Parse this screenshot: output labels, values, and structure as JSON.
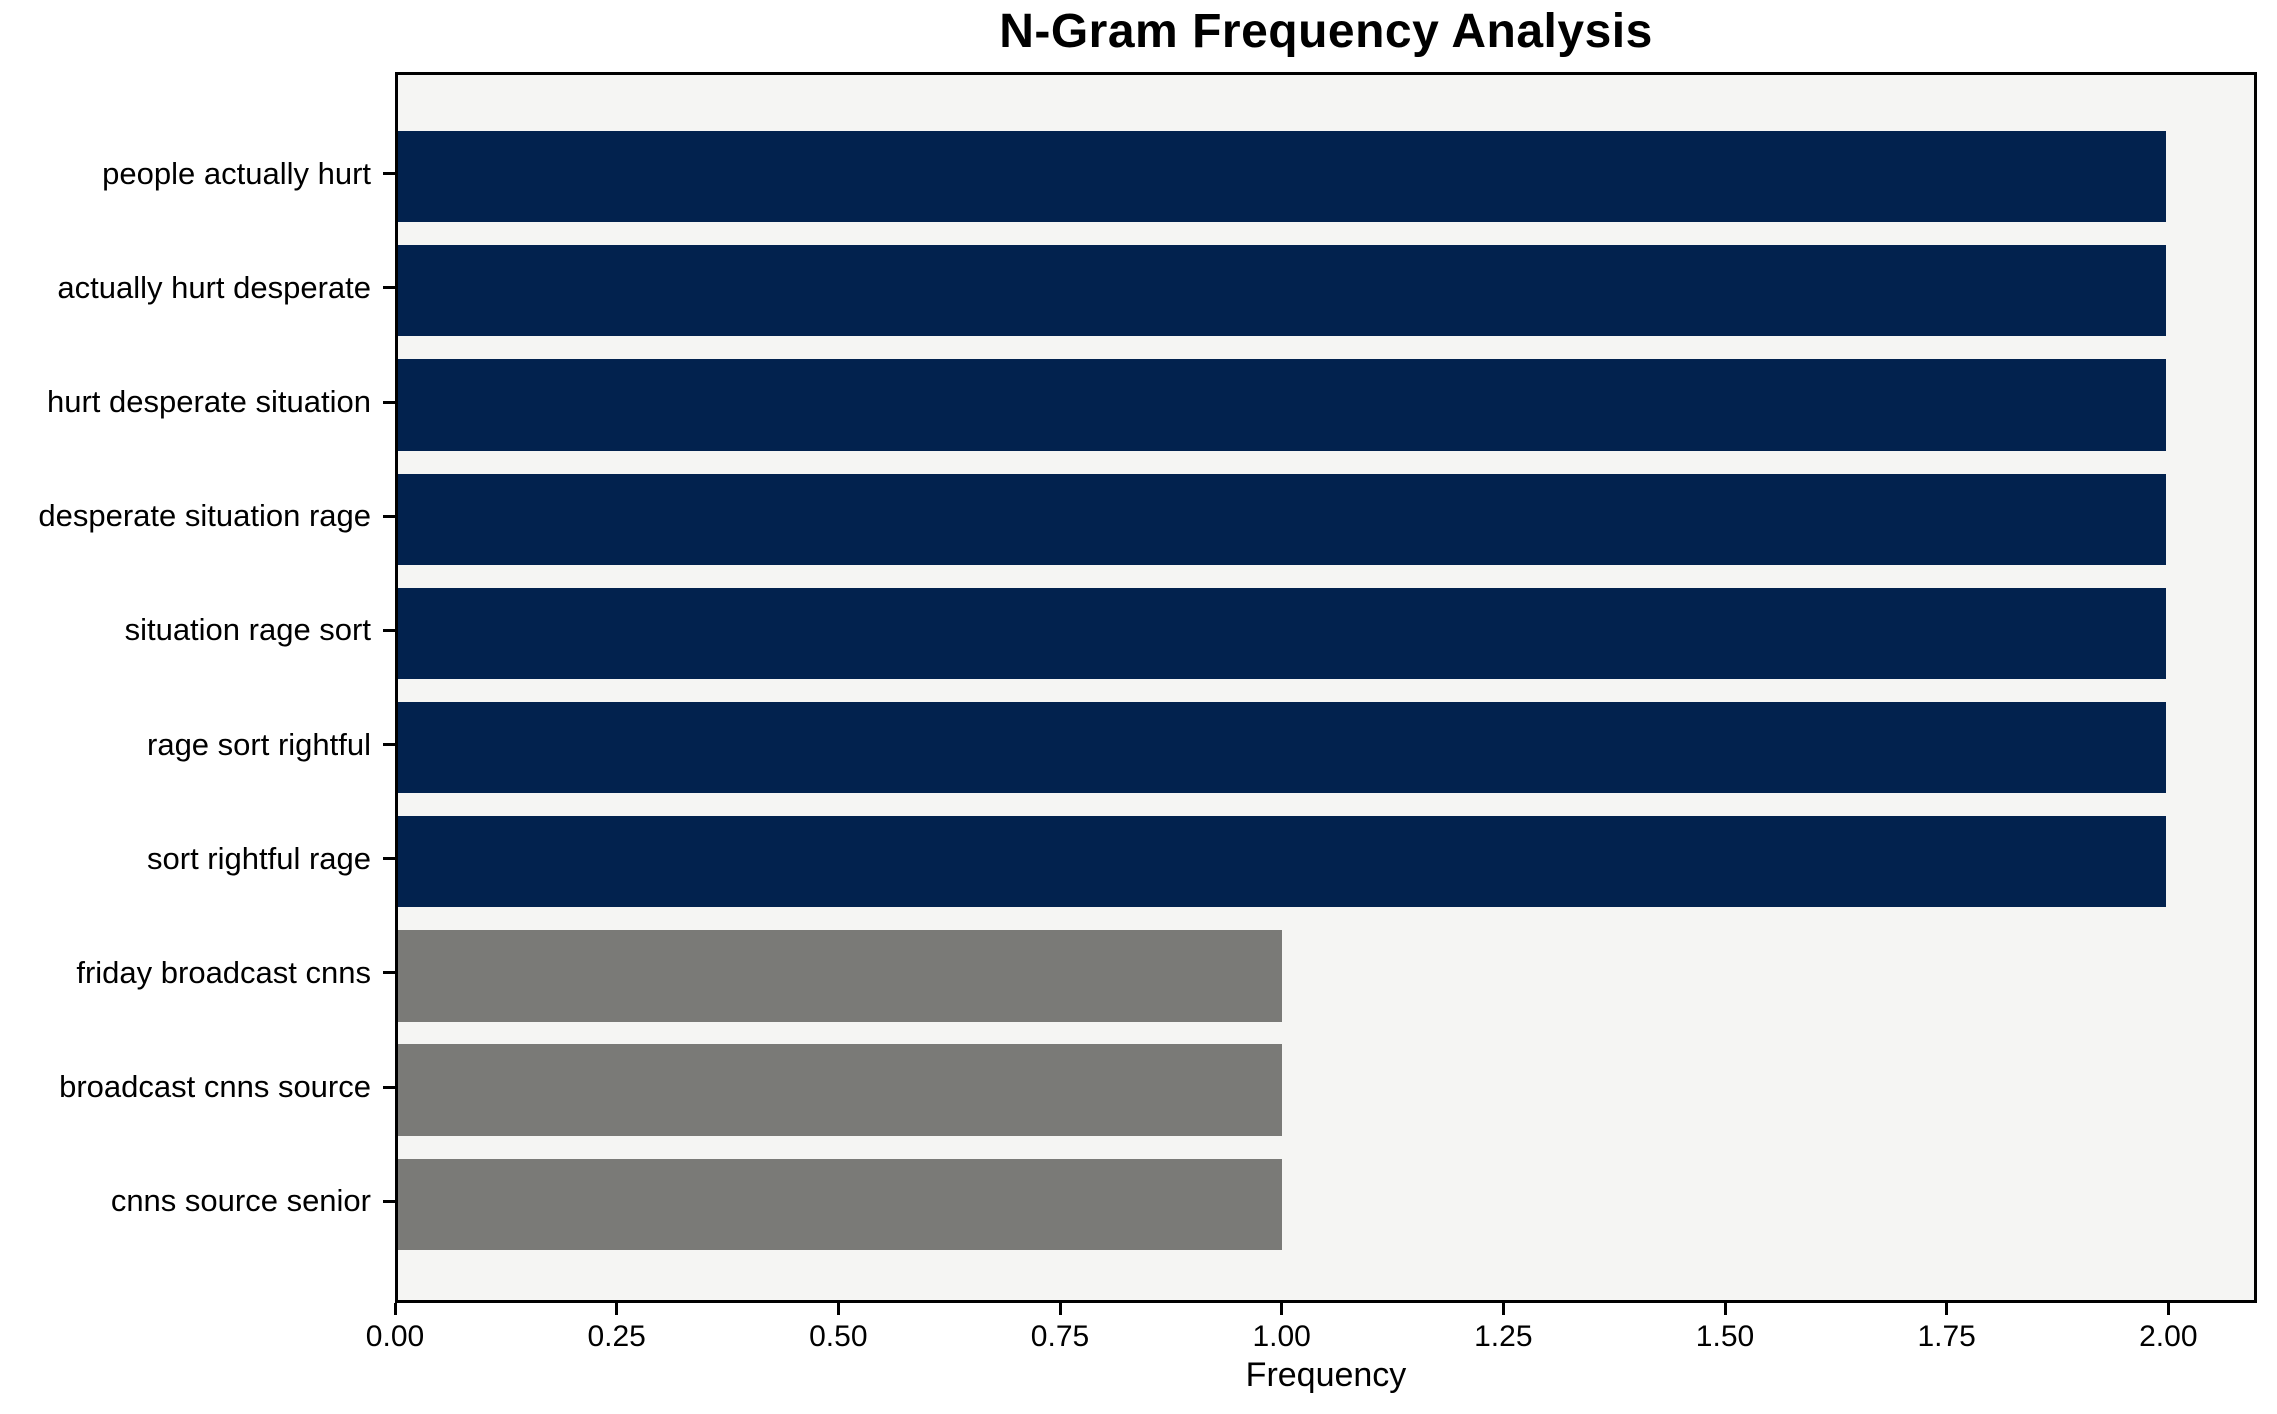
{
  "chart_data": {
    "type": "bar",
    "orientation": "horizontal",
    "title": "N-Gram Frequency Analysis",
    "xlabel": "Frequency",
    "ylabel": "",
    "categories": [
      "people actually hurt",
      "actually hurt desperate",
      "hurt desperate situation",
      "desperate situation rage",
      "situation rage sort",
      "rage sort rightful",
      "sort rightful rage",
      "friday broadcast cnns",
      "broadcast cnns source",
      "cnns source senior"
    ],
    "values": [
      2,
      2,
      2,
      2,
      2,
      2,
      2,
      1,
      1,
      1
    ],
    "bar_colors": [
      "#02224e",
      "#02224e",
      "#02224e",
      "#02224e",
      "#02224e",
      "#02224e",
      "#02224e",
      "#7a7a77",
      "#7a7a77",
      "#7a7a77"
    ],
    "xlim": [
      0,
      2.1
    ],
    "xticks": [
      0.0,
      0.25,
      0.5,
      0.75,
      1.0,
      1.25,
      1.5,
      1.75,
      2.0
    ],
    "xtick_labels": [
      "0.00",
      "0.25",
      "0.50",
      "0.75",
      "1.00",
      "1.25",
      "1.50",
      "1.75",
      "2.00"
    ],
    "bar_height_fraction": 0.8,
    "grid": false,
    "legend_position": "none",
    "colors": {
      "high_freq_bar": "#02224e",
      "low_freq_bar": "#7a7a77",
      "plot_background": "#f5f5f3",
      "figure_background": "#ffffff",
      "axis": "#000000",
      "text": "#000000"
    }
  }
}
